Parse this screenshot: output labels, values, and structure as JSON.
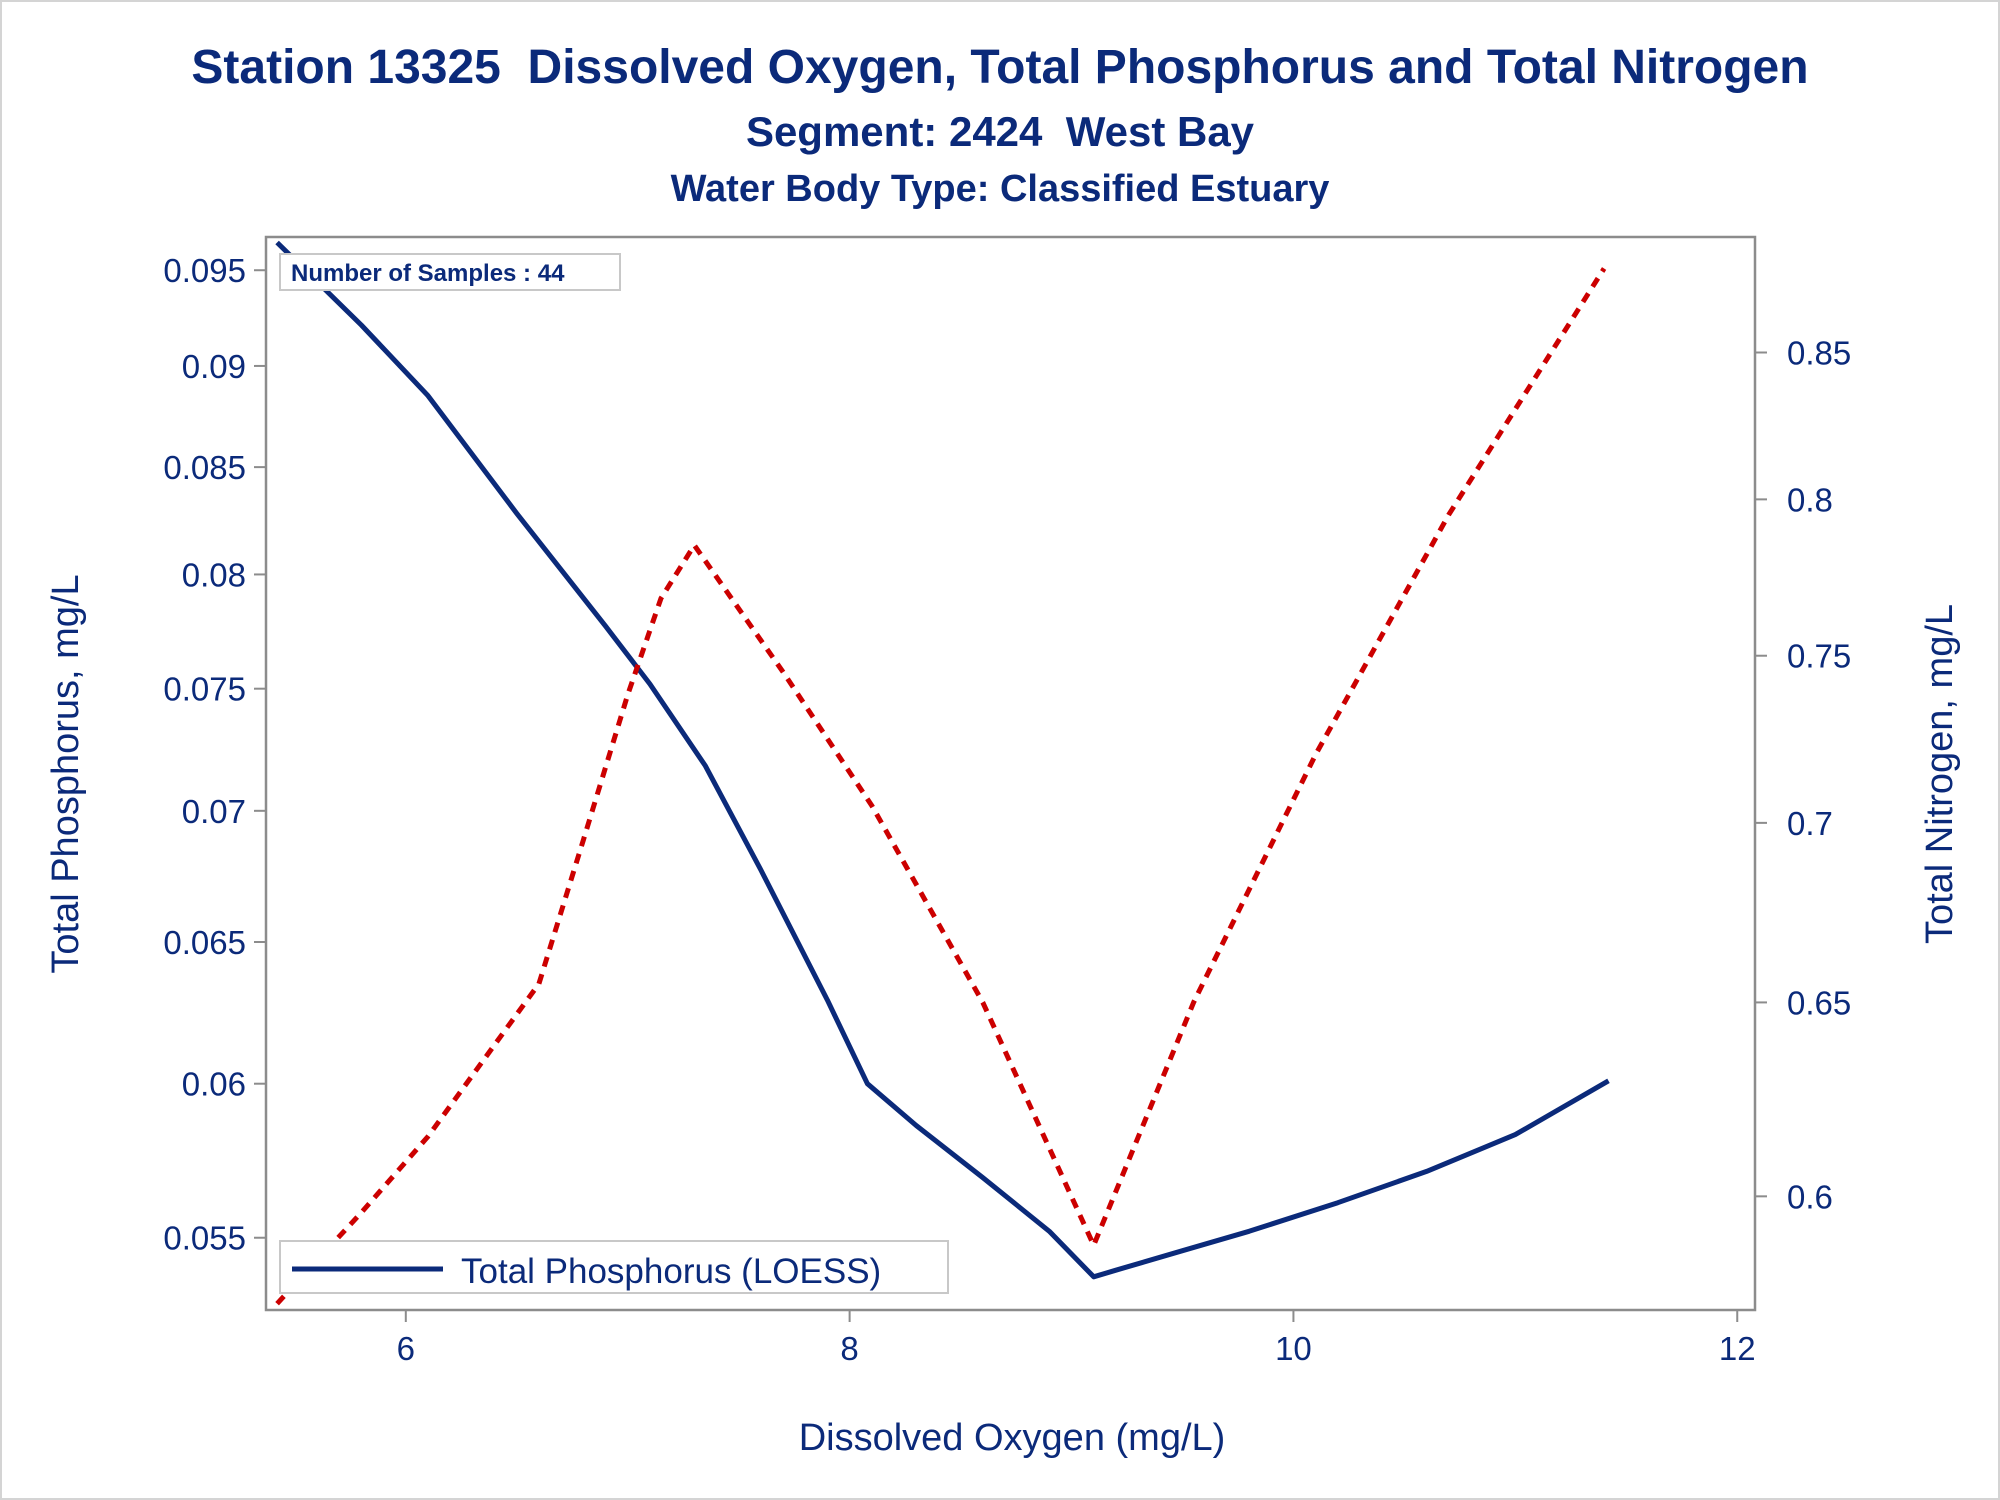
{
  "chart_data": {
    "type": "line",
    "title": "Station 13325  Dissolved Oxygen, Total Phosphorus and Total Nitrogen",
    "subtitle": "Segment: 2424  West Bay",
    "subtitle2": "Water Body Type: Classified Estuary",
    "xlabel": "Dissolved Oxygen (mg/L)",
    "ylabel": "Total Phosphorus, mg/L",
    "y2label": "Total Nitrogen, mg/L",
    "xlim": [
      5.37,
      12.08
    ],
    "ylim": [
      0.0528,
      0.0968
    ],
    "y2lim": [
      0.5725,
      0.8915
    ],
    "y_scale": "log",
    "y2_scale": "log",
    "x_ticks": [
      6,
      8,
      10,
      12
    ],
    "y_ticks": [
      0.055,
      0.06,
      0.065,
      0.07,
      0.075,
      0.08,
      0.085,
      0.09,
      0.095
    ],
    "y2_ticks": [
      0.6,
      0.65,
      0.7,
      0.75,
      0.8,
      0.85
    ],
    "y_tick_labels": [
      "0.055",
      "0.06",
      "0.065",
      "0.07",
      "0.075",
      "0.08",
      "0.085",
      "0.09",
      "0.095"
    ],
    "y2_tick_labels": [
      "0.6",
      "0.65",
      "0.7",
      "0.75",
      "0.8",
      "0.85"
    ],
    "x_tick_labels": [
      "6",
      "8",
      "10",
      "12"
    ],
    "grid": false,
    "legend_position": "bottom-left",
    "annotation": "Number of Samples : 44",
    "series": [
      {
        "name": "Total Phosphorus (LOESS)",
        "axis": "left",
        "color": "#0b2a7a",
        "style": "solid",
        "x": [
          5.42,
          5.8,
          6.1,
          6.5,
          6.9,
          7.1,
          7.35,
          7.6,
          7.9,
          8.08,
          8.3,
          8.6,
          8.9,
          9.1,
          9.2,
          9.5,
          9.8,
          10.2,
          10.6,
          11.0,
          11.42
        ],
        "y": [
          0.0965,
          0.0921,
          0.0885,
          0.0828,
          0.0777,
          0.0752,
          0.0718,
          0.0677,
          0.0629,
          0.06,
          0.0586,
          0.0569,
          0.0552,
          0.0538,
          0.054,
          0.0546,
          0.0552,
          0.0561,
          0.0571,
          0.0583,
          0.0601
        ]
      },
      {
        "name": "Total Nitrogen",
        "axis": "right",
        "color": "#cc0000",
        "style": "dashed",
        "x": [
          5.42,
          5.8,
          6.1,
          6.6,
          6.8,
          7.0,
          7.15,
          7.3,
          7.7,
          8.1,
          8.6,
          9.1,
          9.55,
          10.1,
          10.7,
          11.4
        ],
        "y": [
          0.574,
          0.596,
          0.615,
          0.655,
          0.695,
          0.738,
          0.768,
          0.785,
          0.745,
          0.705,
          0.65,
          0.588,
          0.65,
          0.72,
          0.795,
          0.88
        ]
      }
    ]
  }
}
